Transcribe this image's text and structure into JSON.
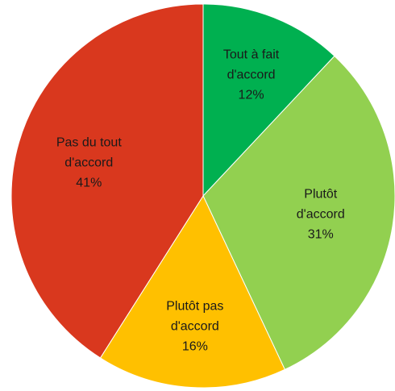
{
  "chart_data": {
    "type": "pie",
    "categories": [
      "Tout à fait d'accord",
      "Plutôt d'accord",
      "Plutôt pas d'accord",
      "Pas du tout d'accord"
    ],
    "values": [
      12,
      31,
      16,
      41
    ],
    "value_labels": [
      "12%",
      "31%",
      "16%",
      "41%"
    ],
    "colors": [
      "#00b050",
      "#92d050",
      "#ffc000",
      "#d9381e"
    ]
  }
}
